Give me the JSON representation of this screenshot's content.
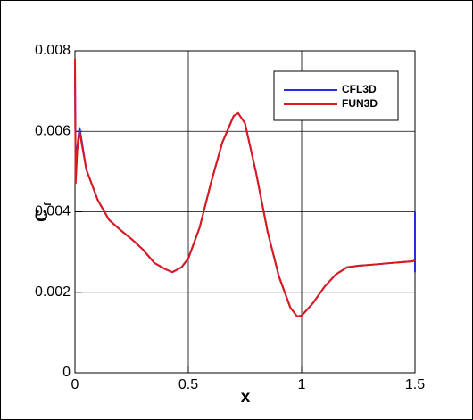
{
  "chart_data": {
    "type": "line",
    "xlabel": "x",
    "ylabel": "C",
    "ylabel_subscript": "f",
    "xlim": [
      0,
      1.5
    ],
    "ylim": [
      0,
      0.008
    ],
    "xticks": [
      0,
      0.5,
      1,
      1.5
    ],
    "yticks": [
      0,
      0.002,
      0.004,
      0.006,
      0.008
    ],
    "grid": true,
    "legend": "upper right",
    "series": [
      {
        "name": "CFL3D",
        "color": "#2a2ae0",
        "x": [
          0,
          0.003,
          0.01,
          0.02,
          0.05,
          0.1,
          0.15,
          0.2,
          0.25,
          0.3,
          0.35,
          0.4,
          0.43,
          0.47,
          0.5,
          0.55,
          0.6,
          0.65,
          0.7,
          0.72,
          0.75,
          0.8,
          0.85,
          0.9,
          0.95,
          0.98,
          1.0,
          1.05,
          1.1,
          1.15,
          1.2,
          1.25,
          1.3,
          1.4,
          1.49,
          1.5,
          1.5,
          1.5
        ],
        "values": [
          0.0075,
          0.0048,
          0.0056,
          0.0061,
          0.00505,
          0.0043,
          0.0038,
          0.00355,
          0.00332,
          0.00306,
          0.00273,
          0.00257,
          0.0025,
          0.00262,
          0.00284,
          0.00361,
          0.00472,
          0.00572,
          0.00638,
          0.00645,
          0.0062,
          0.00494,
          0.0035,
          0.00239,
          0.00162,
          0.0014,
          0.00142,
          0.00173,
          0.00213,
          0.00244,
          0.00262,
          0.00266,
          0.00268,
          0.00273,
          0.00277,
          0.0028,
          0.004,
          0.0025
        ]
      },
      {
        "name": "FUN3D",
        "color": "#e01818",
        "x": [
          0,
          0.003,
          0.01,
          0.02,
          0.05,
          0.1,
          0.15,
          0.2,
          0.25,
          0.3,
          0.35,
          0.4,
          0.43,
          0.47,
          0.5,
          0.55,
          0.6,
          0.65,
          0.7,
          0.72,
          0.75,
          0.8,
          0.85,
          0.9,
          0.95,
          0.98,
          1.0,
          1.05,
          1.1,
          1.15,
          1.2,
          1.25,
          1.3,
          1.4,
          1.49,
          1.5
        ],
        "values": [
          0.0078,
          0.0047,
          0.0055,
          0.006,
          0.00505,
          0.0043,
          0.0038,
          0.00355,
          0.00332,
          0.00306,
          0.00273,
          0.00257,
          0.0025,
          0.00262,
          0.00284,
          0.00361,
          0.00472,
          0.00572,
          0.00638,
          0.00645,
          0.0062,
          0.00494,
          0.0035,
          0.00239,
          0.00162,
          0.0014,
          0.00142,
          0.00173,
          0.00213,
          0.00244,
          0.00262,
          0.00266,
          0.00268,
          0.00273,
          0.00277,
          0.0028
        ]
      }
    ]
  }
}
